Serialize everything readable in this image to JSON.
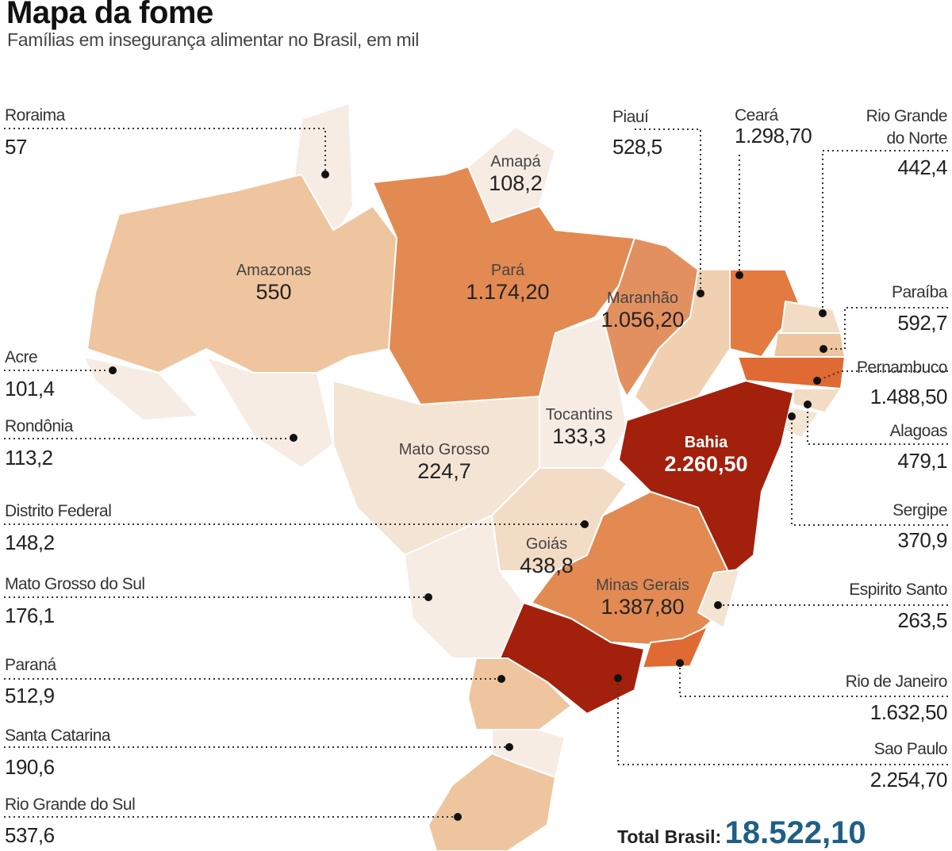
{
  "title": "Mapa da fome",
  "subtitle": "Famílias em insegurança alimentar no Brasil, em mil",
  "total": {
    "label": "Total Brasil:",
    "value": "18.522,10"
  },
  "colors": {
    "very_light": "#f6ece4",
    "light": "#f2dcc6",
    "mid_light": "#eec59e",
    "mid": "#e28a52",
    "strong": "#df6a34",
    "dark": "#a3200c",
    "total": "#1f5f86"
  },
  "states": {
    "roraima": {
      "name": "Roraima",
      "value": "57"
    },
    "amapa": {
      "name": "Amapá",
      "value": "108,2"
    },
    "amazonas": {
      "name": "Amazonas",
      "value": "550"
    },
    "para": {
      "name": "Pará",
      "value": "1.174,20"
    },
    "maranhao": {
      "name": "Maranhão",
      "value": "1.056,20"
    },
    "piaui": {
      "name": "Piauí",
      "value": "528,5"
    },
    "ceara": {
      "name": "Ceará",
      "value": "1.298,70"
    },
    "rio_grande_do_norte": {
      "name1": "Rio Grande",
      "name2": "do Norte",
      "value": "442,4"
    },
    "paraiba": {
      "name": "Paraíba",
      "value": "592,7"
    },
    "pernambuco": {
      "name": "Pernambuco",
      "value": "1.488,50"
    },
    "alagoas": {
      "name": "Alagoas",
      "value": "479,1"
    },
    "sergipe": {
      "name": "Sergipe",
      "value": "370,9"
    },
    "bahia": {
      "name": "Bahia",
      "value": "2.260,50"
    },
    "tocantins": {
      "name": "Tocantins",
      "value": "133,3"
    },
    "acre": {
      "name": "Acre",
      "value": "101,4"
    },
    "rondonia": {
      "name": "Rondônia",
      "value": "113,2"
    },
    "mato_grosso": {
      "name": "Mato Grosso",
      "value": "224,7"
    },
    "distrito_federal": {
      "name": "Distrito Federal",
      "value": "148,2"
    },
    "goias": {
      "name": "Goiás",
      "value": "438,8"
    },
    "mato_grosso_do_sul": {
      "name": "Mato Grosso do Sul",
      "value": "176,1"
    },
    "minas_gerais": {
      "name": "Minas Gerais",
      "value": "1.387,80"
    },
    "espirito_santo": {
      "name": "Espirito Santo",
      "value": "263,5"
    },
    "rio_de_janeiro": {
      "name": "Rio de Janeiro",
      "value": "1.632,50"
    },
    "sao_paulo": {
      "name": "Sao Paulo",
      "value": "2.254,70"
    },
    "parana": {
      "name": "Paraná",
      "value": "512,9"
    },
    "santa_catarina": {
      "name": "Santa Catarina",
      "value": "190,6"
    },
    "rio_grande_do_sul": {
      "name": "Rio Grande do Sul",
      "value": "537,6"
    }
  }
}
